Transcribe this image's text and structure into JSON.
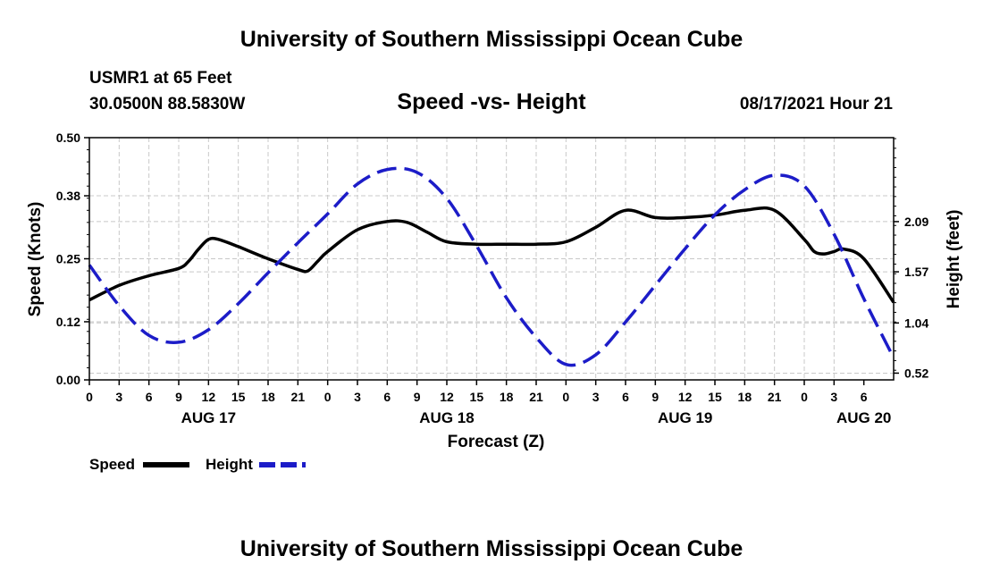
{
  "header": {
    "title": "University of Southern Mississippi Ocean Cube",
    "station": "USMR1 at 65 Feet",
    "coordinates": "30.0500N  88.5830W",
    "subtitle": "Speed -vs- Height",
    "datetime": "08/17/2021 Hour 21"
  },
  "footer": {
    "title": "University of Southern Mississippi Ocean Cube"
  },
  "colors": {
    "speed": "#000000",
    "height": "#1c1cc8",
    "grid": "#c8c8c8"
  },
  "chart_data": {
    "type": "line",
    "title": "Speed -vs- Height",
    "xlabel": "Forecast (Z)",
    "ylabel": "Speed (Knots)",
    "y2label": "Height (feet)",
    "x_range_hours": [
      0,
      81
    ],
    "x_tick_step_hours": 3,
    "x_tick_labels": [
      "0",
      "3",
      "6",
      "9",
      "12",
      "15",
      "18",
      "21",
      "0",
      "3",
      "6",
      "9",
      "12",
      "15",
      "18",
      "21",
      "0",
      "3",
      "6",
      "9",
      "12",
      "15",
      "18",
      "21",
      "0",
      "3",
      "6"
    ],
    "day_labels": [
      {
        "label": "AUG 17",
        "hour": 12
      },
      {
        "label": "AUG 18",
        "hour": 36
      },
      {
        "label": "AUG 19",
        "hour": 60
      },
      {
        "label": "AUG 20",
        "hour": 78
      }
    ],
    "ylim": [
      0,
      0.5
    ],
    "y_ticks": [
      0.0,
      0.12,
      0.25,
      0.38,
      0.5
    ],
    "y_tick_labels": [
      "0.00",
      "0.12",
      "0.25",
      "0.38",
      "0.50"
    ],
    "y2lim": [
      0.45,
      2.96
    ],
    "y2_ticks": [
      0.52,
      1.04,
      1.57,
      2.09
    ],
    "y2_tick_labels": [
      "0.52",
      "1.04",
      "1.57",
      "2.09"
    ],
    "grid": true,
    "legend_position": "bottom-left",
    "series": [
      {
        "name": "Speed",
        "axis": "left",
        "style": "solid",
        "x": [
          0,
          3,
          6,
          9,
          10,
          11,
          12,
          13,
          15,
          18,
          21,
          22,
          23,
          24,
          27,
          30,
          32,
          34,
          36,
          39,
          42,
          45,
          48,
          51,
          54,
          57,
          60,
          63,
          66,
          69,
          72,
          73,
          74,
          75,
          76,
          78,
          81
        ],
        "values": [
          0.165,
          0.195,
          0.215,
          0.23,
          0.245,
          0.27,
          0.29,
          0.29,
          0.275,
          0.25,
          0.228,
          0.225,
          0.245,
          0.265,
          0.31,
          0.327,
          0.325,
          0.305,
          0.285,
          0.28,
          0.28,
          0.28,
          0.285,
          0.315,
          0.35,
          0.335,
          0.335,
          0.34,
          0.35,
          0.35,
          0.29,
          0.265,
          0.26,
          0.265,
          0.27,
          0.25,
          0.16
        ]
      },
      {
        "name": "Height",
        "axis": "right",
        "style": "dashed",
        "x": [
          0,
          3,
          6,
          9,
          12,
          15,
          18,
          21,
          24,
          27,
          30,
          33,
          36,
          39,
          42,
          45,
          48,
          51,
          54,
          57,
          60,
          63,
          66,
          69,
          72,
          75,
          78,
          81
        ],
        "values": [
          1.64,
          1.22,
          0.91,
          0.84,
          0.97,
          1.24,
          1.56,
          1.87,
          2.17,
          2.48,
          2.63,
          2.6,
          2.33,
          1.84,
          1.3,
          0.89,
          0.61,
          0.71,
          1.05,
          1.43,
          1.81,
          2.16,
          2.42,
          2.57,
          2.46,
          1.96,
          1.29,
          0.68
        ]
      }
    ]
  }
}
